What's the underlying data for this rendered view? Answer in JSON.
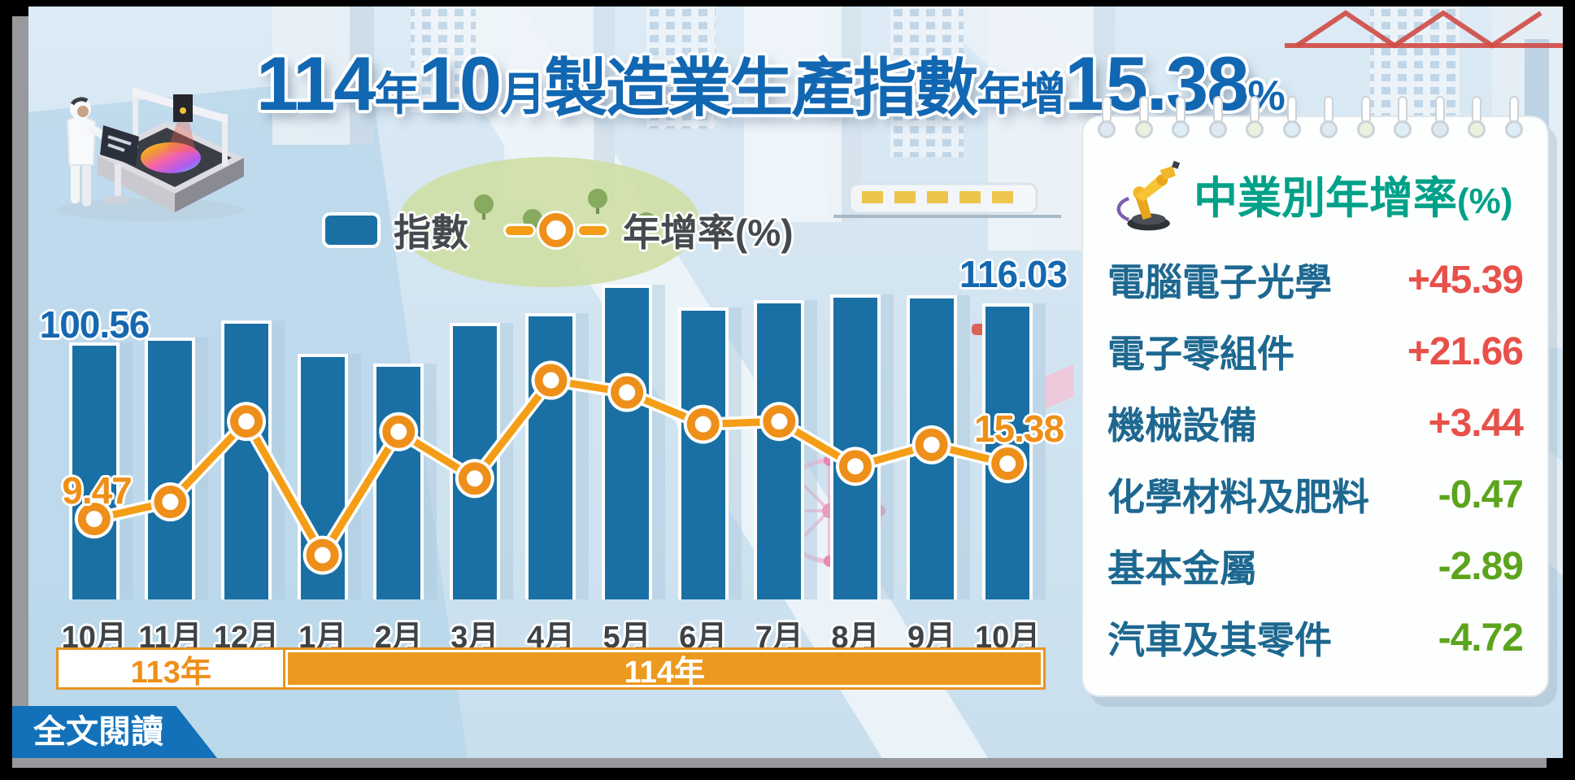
{
  "title": {
    "year_num": "114",
    "year_unit": "年",
    "month_num": "10",
    "month_unit": "月",
    "subject": "製造業生產指數",
    "growth_word": "年增",
    "growth_value": "15.38",
    "percent_sign": "%"
  },
  "legend": {
    "index_label": "指數",
    "growth_label": "年增率(%)"
  },
  "chart_data": {
    "type": "bar",
    "categories": [
      "10月",
      "11月",
      "12月",
      "1月",
      "2月",
      "3月",
      "4月",
      "5月",
      "6月",
      "7月",
      "8月",
      "9月",
      "10月"
    ],
    "series": [
      {
        "name": "指數",
        "type": "bar",
        "values": [
          100.56,
          102.6,
          109.4,
          96.1,
          92.3,
          108.4,
          112.3,
          123.5,
          114.5,
          117.4,
          119.7,
          119.4,
          116.03
        ]
      },
      {
        "name": "年增率(%)",
        "type": "line",
        "values": [
          9.47,
          11.3,
          19.9,
          5.6,
          18.8,
          13.8,
          24.3,
          23.0,
          19.6,
          19.9,
          15.1,
          17.4,
          15.38
        ]
      }
    ],
    "year_bands": [
      {
        "label": "113年",
        "months_span": 3
      },
      {
        "label": "114年",
        "months_span": 10
      }
    ],
    "annotations": {
      "first_bar_value": "100.56",
      "first_point_value": "9.47",
      "last_bar_value": "116.03",
      "last_point_value": "15.38"
    },
    "bar_axis_range": [
      0,
      130
    ],
    "line_axis_range": [
      0,
      30
    ],
    "grid": false,
    "legend_position": "top"
  },
  "panel": {
    "title": "中業別年增率",
    "title_suffix": "(%)",
    "rows": [
      {
        "label": "電腦電子光學",
        "value": "+45.39",
        "direction": "up"
      },
      {
        "label": "電子零組件",
        "value": "+21.66",
        "direction": "up"
      },
      {
        "label": "機械設備",
        "value": "+3.44",
        "direction": "up"
      },
      {
        "label": "化學材料及肥料",
        "value": "-0.47",
        "direction": "down"
      },
      {
        "label": "基本金屬",
        "value": "-2.89",
        "direction": "down"
      },
      {
        "label": "汽車及其零件",
        "value": "-4.72",
        "direction": "down"
      }
    ]
  },
  "footer": {
    "read_more_label": "全文閱讀"
  },
  "icons": {
    "panel_icon": "robot-arm-icon",
    "header_illustration": "wafer-inspection-machine",
    "background": "isometric-city-illustration"
  },
  "colors": {
    "title_blue": "#1267b2",
    "bar_blue": "#1a70a4",
    "line_orange": "#f49d16",
    "marker_orange": "#ee8f1a",
    "year_band_orange": "#ec9a1f",
    "panel_title_teal": "#00a189",
    "row_label_blue": "#1d6890",
    "increase_red": "#e8504a",
    "decrease_green": "#5ba41c",
    "button_blue": "#1371ba",
    "background_blue": "#d2e4f1"
  }
}
